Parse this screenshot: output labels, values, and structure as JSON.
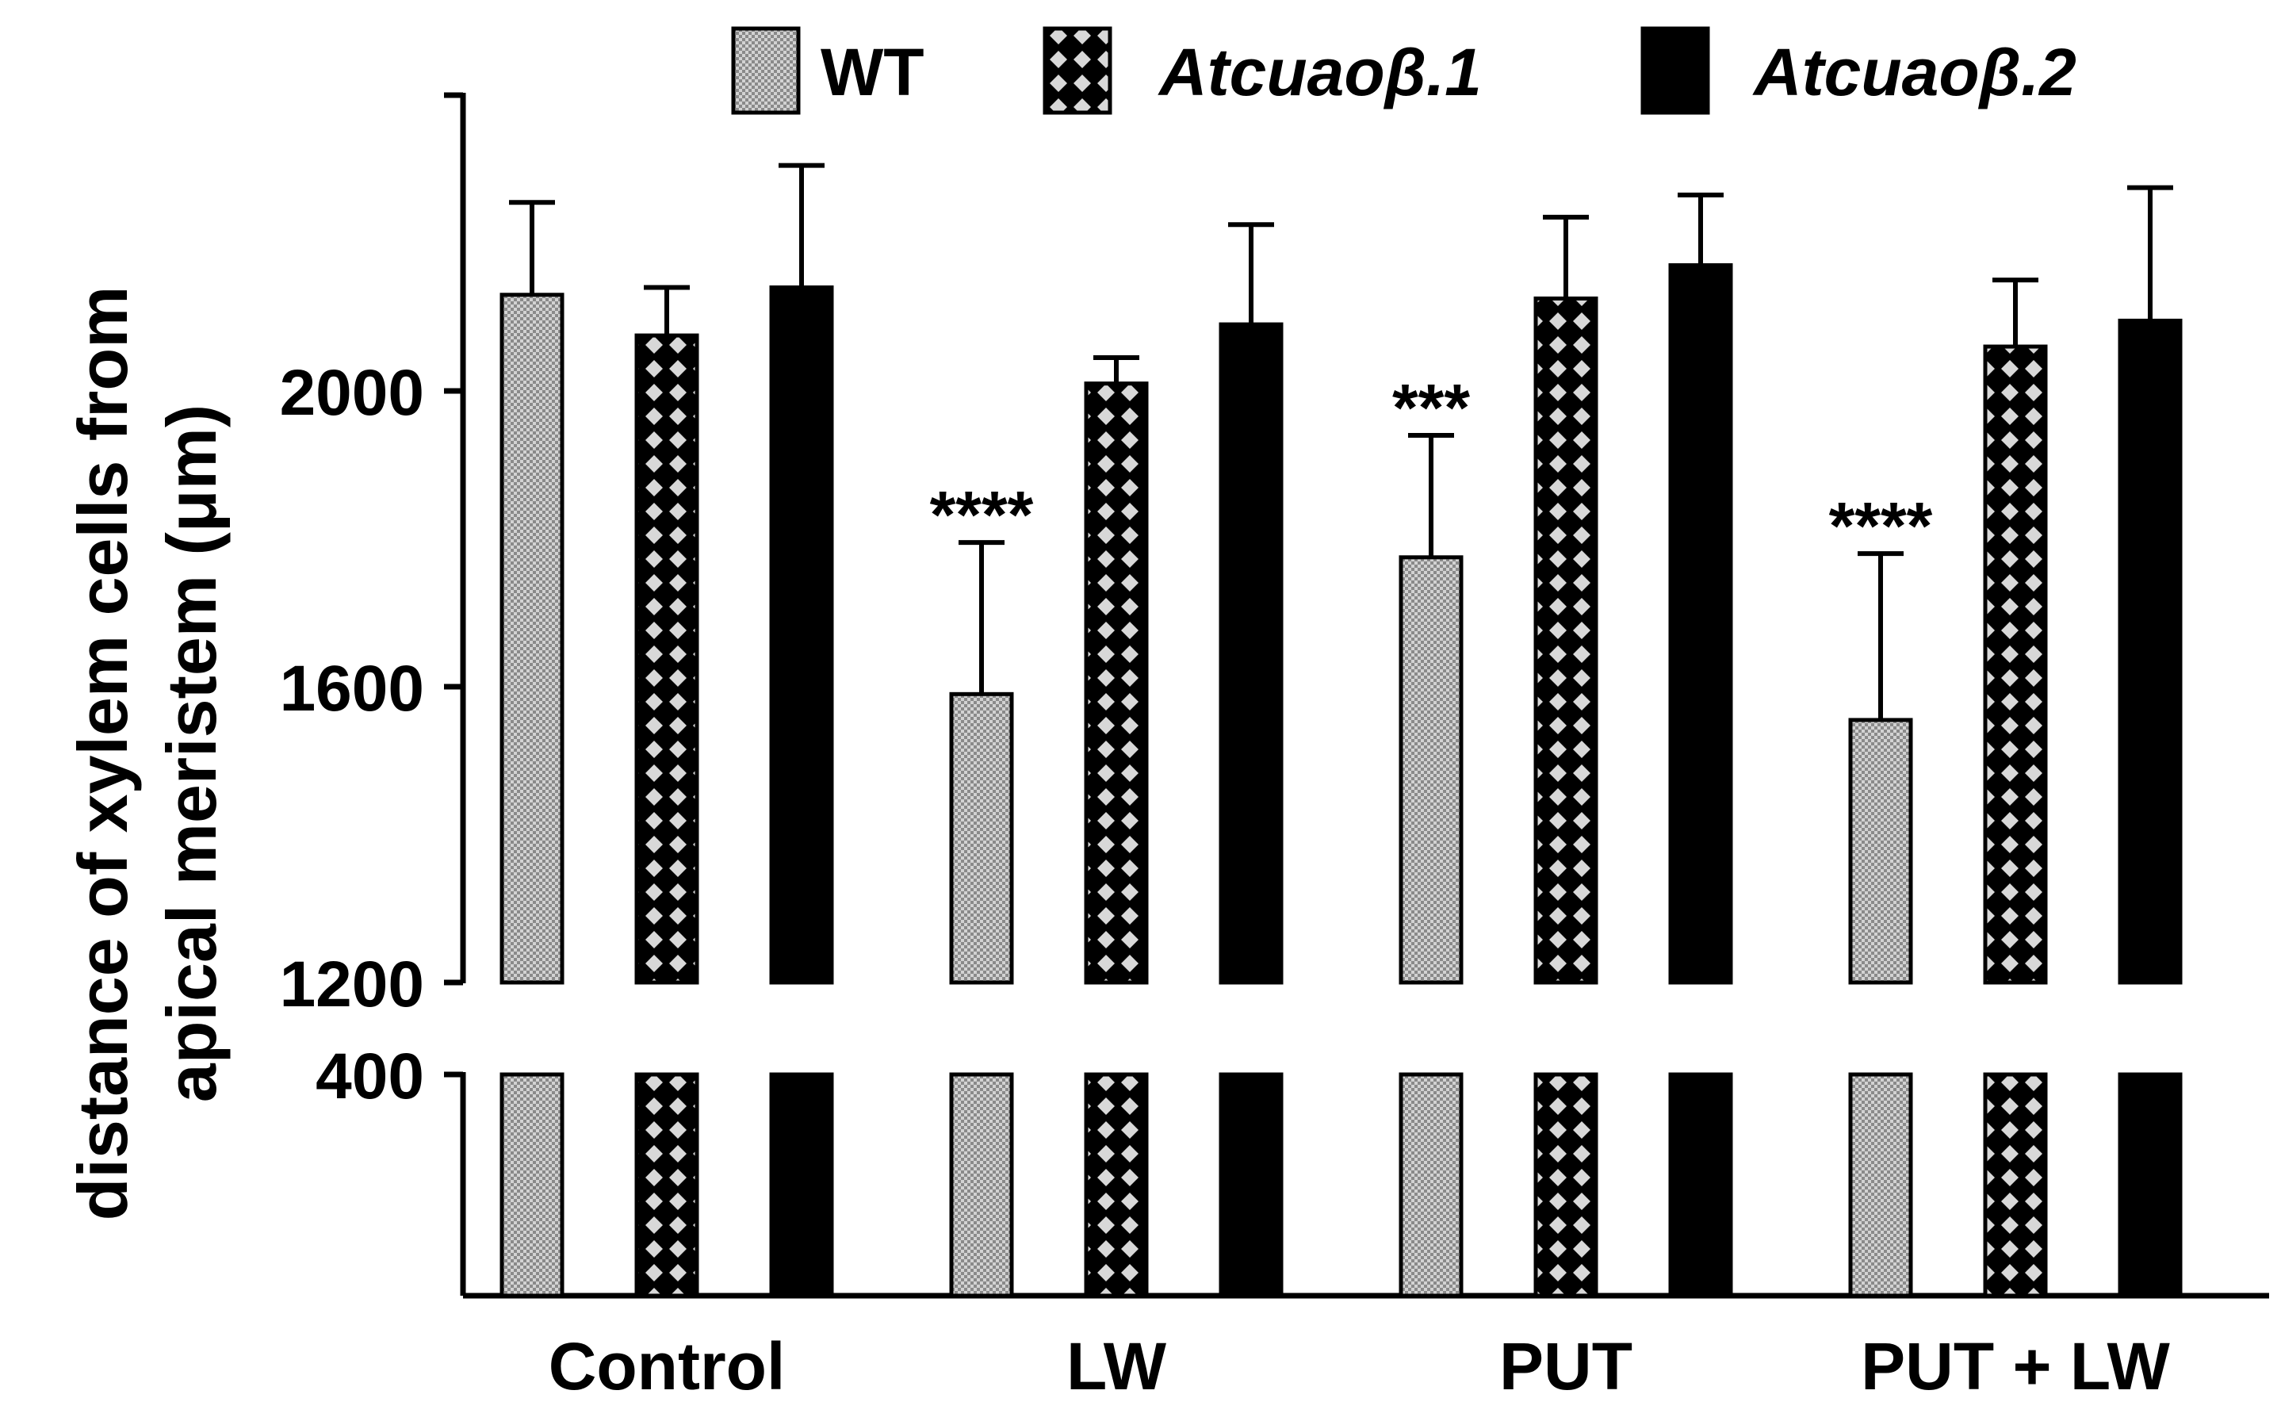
{
  "chart_data": {
    "type": "bar",
    "ylabel_line1": "distance of xylem cells from",
    "ylabel_line2": "apical meristem (μm)",
    "categories": [
      "Control",
      "LW",
      "PUT",
      "PUT + LW"
    ],
    "series": [
      {
        "name": "WT",
        "pattern": "fine-checker",
        "values": [
          2130,
          1590,
          1775,
          1555
        ],
        "errors": [
          125,
          205,
          165,
          225
        ]
      },
      {
        "name": "Atcuaoβ.1",
        "pattern": "diamond-lattice",
        "values": [
          2075,
          2010,
          2125,
          2060
        ],
        "errors": [
          65,
          35,
          110,
          90
        ]
      },
      {
        "name": "Atcuaoβ.2",
        "pattern": "solid",
        "values": [
          2140,
          2090,
          2170,
          2095
        ],
        "errors": [
          165,
          135,
          95,
          180
        ]
      }
    ],
    "significance": [
      {
        "category": "PUT",
        "series": "WT",
        "label": "***"
      },
      {
        "category": "LW",
        "series": "WT",
        "label": "****"
      },
      {
        "category": "PUT + LW",
        "series": "WT",
        "label": "****"
      }
    ],
    "yaxis": {
      "upper_segment": {
        "range": [
          1200,
          2400
        ],
        "ticks": [
          1200,
          1600,
          2000
        ]
      },
      "lower_segment": {
        "range": [
          0,
          400
        ],
        "ticks": [
          400
        ]
      }
    },
    "grid": false,
    "legend_position": "top"
  },
  "colors": {
    "wt_fill": "#c8c8c8",
    "mutant1_fill": "#ffffff",
    "mutant2_fill": "#000000",
    "ink": "#000000"
  }
}
